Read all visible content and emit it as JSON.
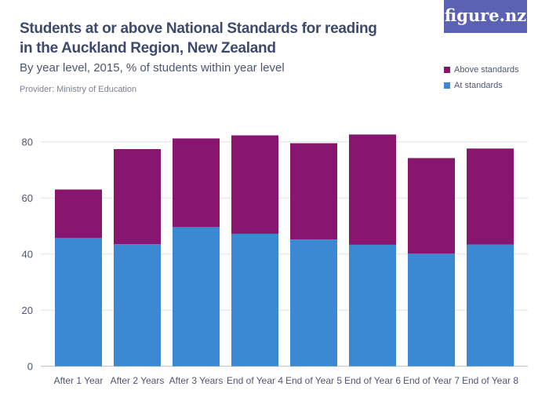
{
  "title": "Students at or above National Standards for reading in the Auckland Region, New Zealand",
  "subtitle": "By year level, 2015, % of students within year level",
  "provider": "Provider: Ministry of Education",
  "logo": "figure.nz",
  "chart_data": {
    "type": "bar",
    "stacked": true,
    "categories": [
      "After 1 Year",
      "After 2 Years",
      "After 3 Years",
      "End of Year 4",
      "End of Year 5",
      "End of Year 6",
      "End of Year 7",
      "End of Year 8"
    ],
    "series": [
      {
        "name": "At standards",
        "color": "#3a89d2",
        "values": [
          45.7,
          43.5,
          49.6,
          47.2,
          45.2,
          43.3,
          40.2,
          43.4
        ]
      },
      {
        "name": "Above standards",
        "color": "#88166f",
        "values": [
          17.3,
          33.9,
          31.6,
          35.1,
          34.3,
          39.3,
          34.0,
          34.2
        ]
      }
    ],
    "yticks": [
      0,
      20,
      40,
      60,
      80
    ],
    "ylim": [
      0,
      80
    ],
    "grid": true,
    "legend": "top-right"
  }
}
